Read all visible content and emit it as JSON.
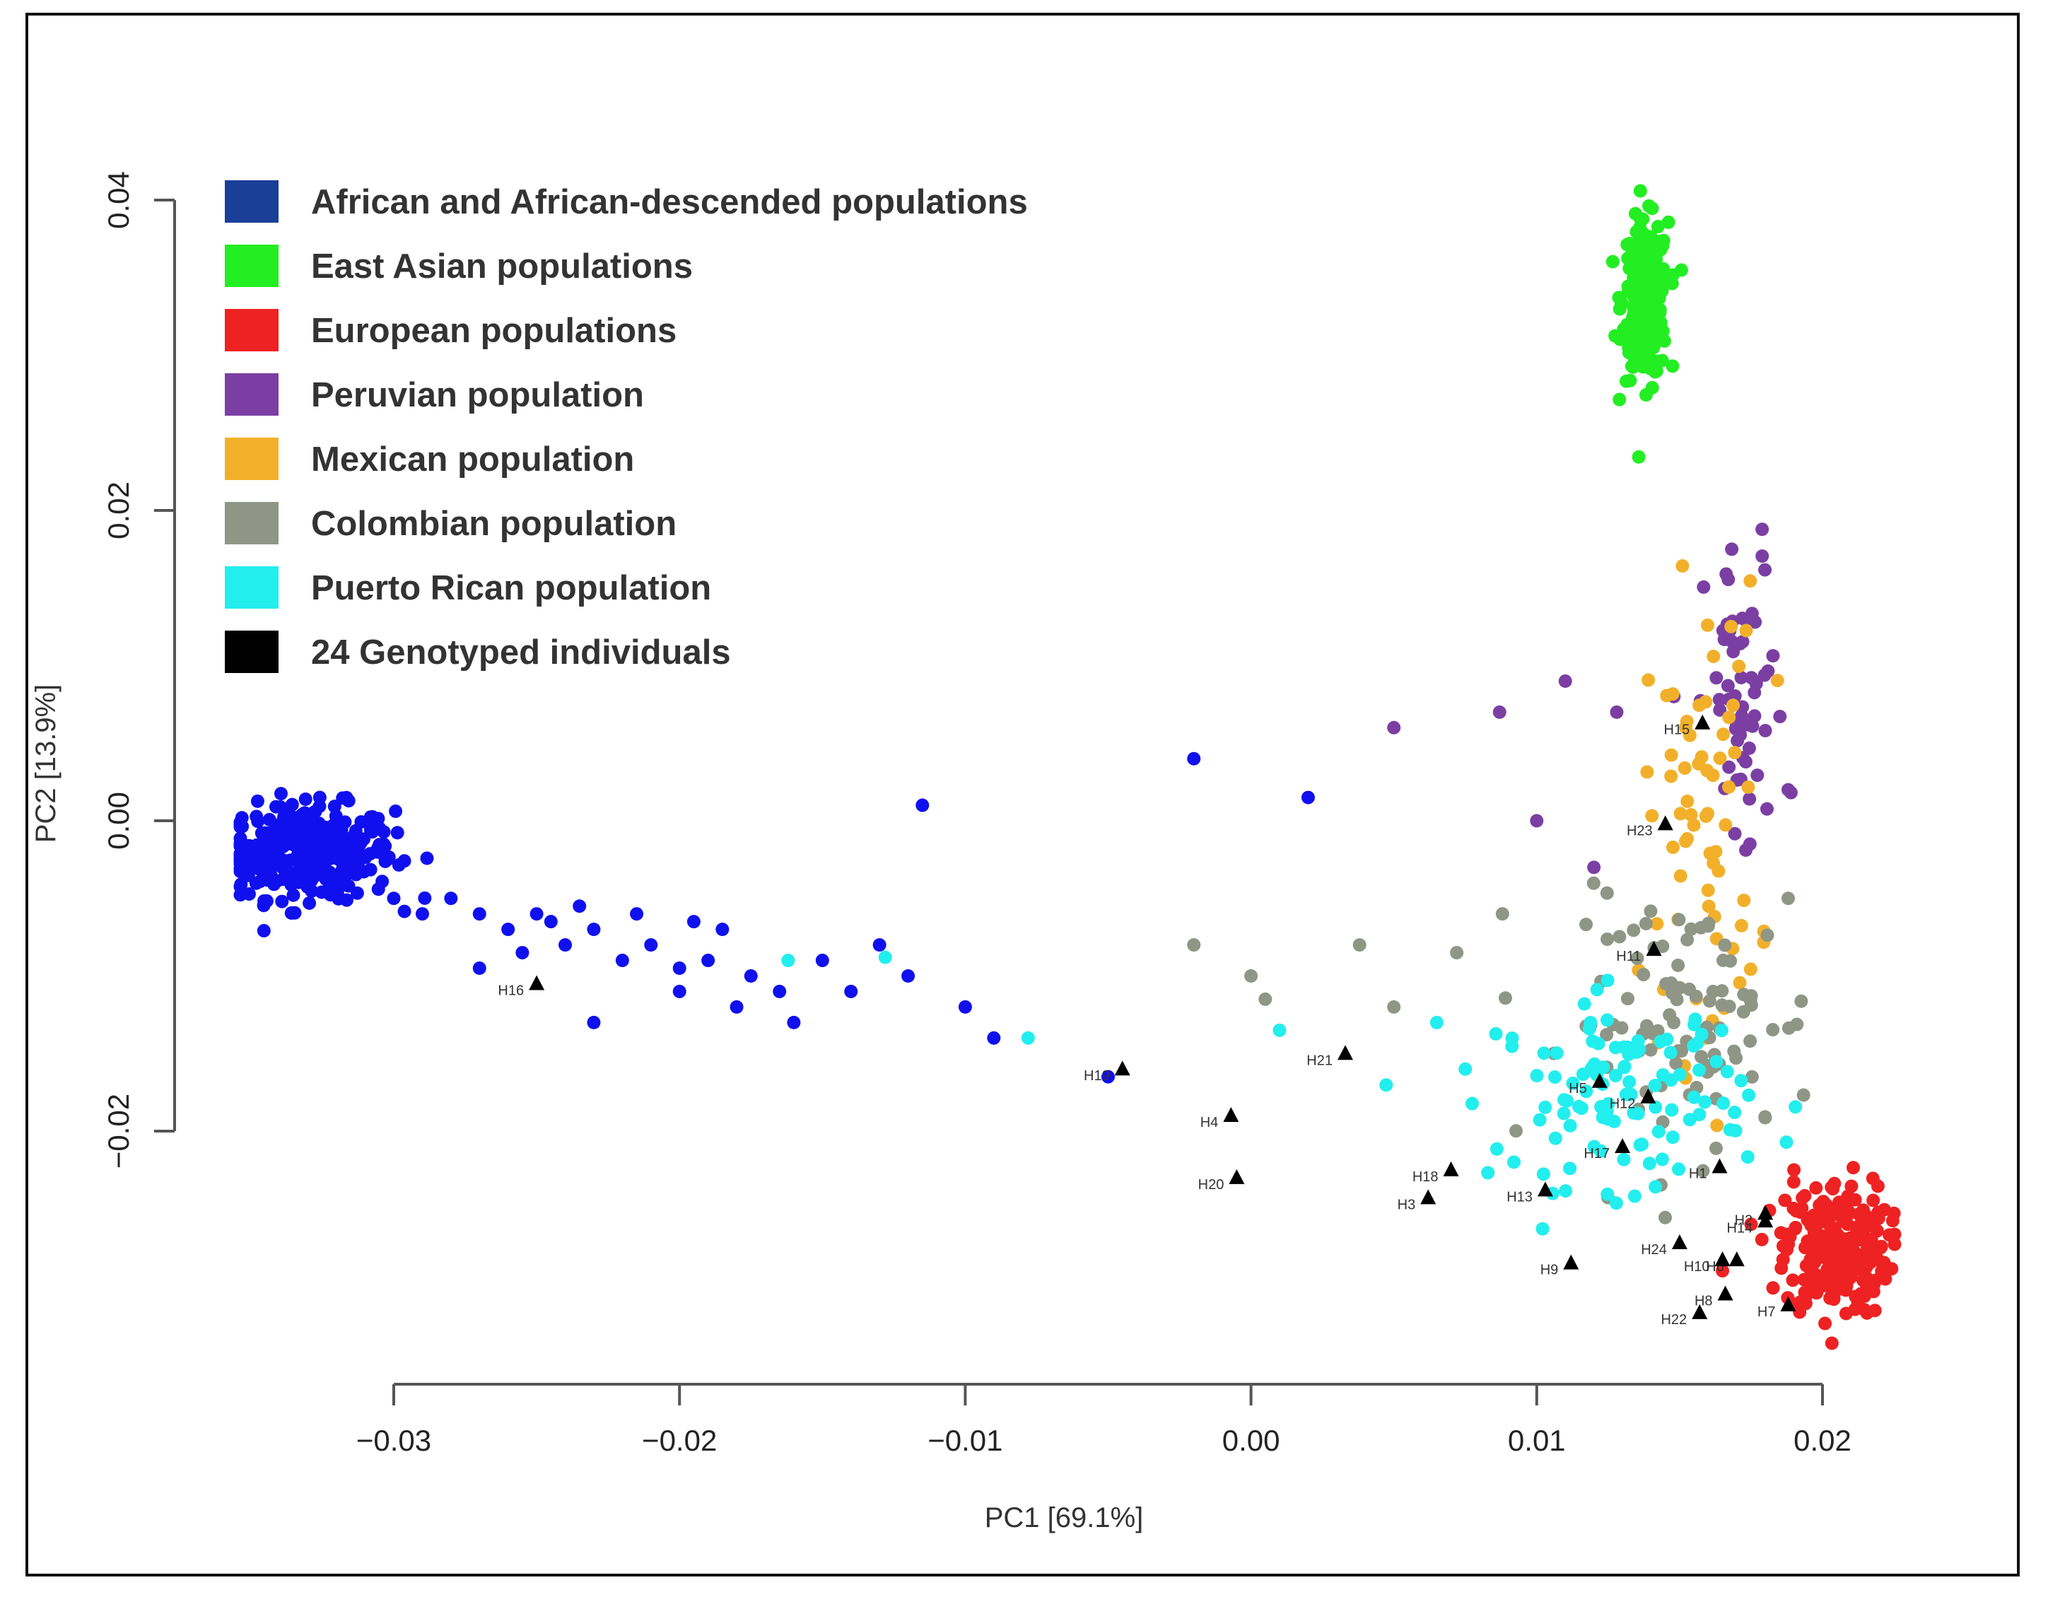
{
  "chart_data": {
    "type": "scatter",
    "title": "",
    "xlabel": "PC1 [69.1%]",
    "ylabel": "PC2 [13.9%]",
    "xlim": [
      -0.03,
      0.02
    ],
    "ylim": [
      -0.02,
      0.04
    ],
    "xticks": [
      -0.03,
      -0.02,
      -0.01,
      0.0,
      0.01,
      0.02
    ],
    "xtick_labels": [
      "−0.03",
      "−0.02",
      "−0.01",
      "0.00",
      "0.01",
      "0.02"
    ],
    "yticks": [
      -0.02,
      0.0,
      0.02,
      0.04
    ],
    "ytick_labels": [
      "−0.02",
      "0.00",
      "0.02",
      "0.04"
    ],
    "grid": false,
    "legend_position": "top-left",
    "legend": [
      {
        "label": "African and African-descended populations",
        "color": "#1a3f99"
      },
      {
        "label": "East Asian populations",
        "color": "#22ee22"
      },
      {
        "label": "European populations",
        "color": "#ee2222"
      },
      {
        "label": "Peruvian population",
        "color": "#7b3fa3"
      },
      {
        "label": "Mexican population",
        "color": "#f2b02a"
      },
      {
        "label": "Colombian population",
        "color": "#8f9685"
      },
      {
        "label": "Puerto Rican population",
        "color": "#22eeee"
      },
      {
        "label": "24 Genotyped individuals",
        "color": "#000000"
      }
    ],
    "series": [
      {
        "name": "African and African-descended populations",
        "color": "#1010ee",
        "clusters": [
          {
            "cx": -0.033,
            "cy": -0.002,
            "sx": 0.0015,
            "sy": 0.0015,
            "n": 330
          }
        ],
        "points": [
          [
            -0.03,
            -0.005
          ],
          [
            -0.029,
            -0.006
          ],
          [
            -0.028,
            -0.005
          ],
          [
            -0.027,
            -0.006
          ],
          [
            -0.026,
            -0.007
          ],
          [
            -0.025,
            -0.006
          ],
          [
            -0.024,
            -0.008
          ],
          [
            -0.023,
            -0.007
          ],
          [
            -0.022,
            -0.009
          ],
          [
            -0.021,
            -0.008
          ],
          [
            -0.02,
            -0.0095
          ],
          [
            -0.019,
            -0.009
          ],
          [
            -0.0185,
            -0.007
          ],
          [
            -0.0175,
            -0.01
          ],
          [
            -0.0165,
            -0.011
          ],
          [
            -0.015,
            -0.009
          ],
          [
            -0.013,
            -0.008
          ],
          [
            -0.012,
            -0.01
          ],
          [
            -0.01,
            -0.012
          ],
          [
            -0.009,
            -0.014
          ],
          [
            -0.023,
            -0.013
          ],
          [
            -0.02,
            -0.011
          ],
          [
            -0.018,
            -0.012
          ],
          [
            -0.016,
            -0.013
          ],
          [
            -0.014,
            -0.011
          ],
          [
            -0.0115,
            0.001
          ],
          [
            -0.002,
            0.004
          ],
          [
            0.002,
            0.0015
          ],
          [
            -0.005,
            -0.0165
          ],
          [
            -0.027,
            -0.0095
          ],
          [
            -0.0255,
            -0.0085
          ],
          [
            -0.0245,
            -0.0065
          ],
          [
            -0.0235,
            -0.0055
          ],
          [
            -0.0215,
            -0.006
          ],
          [
            -0.0195,
            -0.0065
          ]
        ]
      },
      {
        "name": "East Asian populations",
        "color": "#22ee22",
        "clusters": [
          {
            "cx": 0.0138,
            "cy": 0.0335,
            "sx": 0.0004,
            "sy": 0.0025,
            "n": 260
          }
        ],
        "points": []
      },
      {
        "name": "European populations",
        "color": "#ee2222",
        "clusters": [
          {
            "cx": 0.0205,
            "cy": -0.0275,
            "sx": 0.0009,
            "sy": 0.0022,
            "n": 260
          }
        ],
        "points": [
          [
            0.0165,
            -0.029
          ],
          [
            0.019,
            -0.0225
          ],
          [
            0.0175,
            -0.026
          ]
        ]
      },
      {
        "name": "Peruvian population",
        "color": "#7b3fa3",
        "clusters": [
          {
            "cx": 0.0173,
            "cy": 0.007,
            "sx": 0.0007,
            "sy": 0.0055,
            "n": 60
          }
        ],
        "points": [
          [
            0.005,
            0.006
          ],
          [
            0.0087,
            0.007
          ],
          [
            0.011,
            0.009
          ],
          [
            0.0128,
            0.007
          ],
          [
            0.012,
            -0.003
          ],
          [
            0.01,
            0.0
          ],
          [
            0.0148,
            0.008
          ],
          [
            0.0188,
            0.002
          ]
        ]
      },
      {
        "name": "Mexican population",
        "color": "#f2b02a",
        "clusters": [
          {
            "cx": 0.0158,
            "cy": 0.0,
            "sx": 0.001,
            "sy": 0.0075,
            "n": 70
          }
        ],
        "points": []
      },
      {
        "name": "Colombian population",
        "color": "#8f9685",
        "clusters": [
          {
            "cx": 0.0155,
            "cy": -0.013,
            "sx": 0.0022,
            "sy": 0.004,
            "n": 95
          }
        ],
        "points": [
          [
            -0.002,
            -0.008
          ],
          [
            0.0,
            -0.01
          ],
          [
            0.0005,
            -0.0115
          ],
          [
            0.0038,
            -0.008
          ],
          [
            0.005,
            -0.012
          ],
          [
            0.0072,
            -0.0085
          ],
          [
            0.0088,
            -0.006
          ],
          [
            0.0188,
            -0.005
          ]
        ]
      },
      {
        "name": "Puerto Rican population",
        "color": "#22eeee",
        "clusters": [
          {
            "cx": 0.013,
            "cy": -0.0175,
            "sx": 0.0022,
            "sy": 0.003,
            "n": 110
          }
        ],
        "points": [
          [
            -0.0162,
            -0.009
          ],
          [
            -0.0128,
            -0.0088
          ],
          [
            -0.0078,
            -0.014
          ],
          [
            0.001,
            -0.0135
          ],
          [
            0.0065,
            -0.013
          ],
          [
            0.0075,
            -0.016
          ],
          [
            0.0092,
            -0.022
          ]
        ]
      }
    ],
    "genotyped": {
      "name": "24 Genotyped individuals",
      "color": "#000000",
      "points": [
        {
          "id": "H1",
          "x": 0.0164,
          "y": -0.0223
        },
        {
          "id": "H2",
          "x": 0.018,
          "y": -0.0253
        },
        {
          "id": "H3",
          "x": 0.0062,
          "y": -0.0243
        },
        {
          "id": "H4",
          "x": -0.0007,
          "y": -0.019
        },
        {
          "id": "H5",
          "x": 0.0122,
          "y": -0.0168
        },
        {
          "id": "H6",
          "x": 0.017,
          "y": -0.0283
        },
        {
          "id": "H7",
          "x": 0.0188,
          "y": -0.0312
        },
        {
          "id": "H8",
          "x": 0.0166,
          "y": -0.0305
        },
        {
          "id": "H9",
          "x": 0.0112,
          "y": -0.0285
        },
        {
          "id": "H10",
          "x": 0.0165,
          "y": -0.0283
        },
        {
          "id": "H11",
          "x": 0.0141,
          "y": -0.0083
        },
        {
          "id": "H12",
          "x": 0.0139,
          "y": -0.0178
        },
        {
          "id": "H13",
          "x": 0.0103,
          "y": -0.0238
        },
        {
          "id": "H14",
          "x": 0.018,
          "y": -0.0258
        },
        {
          "id": "H15",
          "x": 0.0158,
          "y": 0.0063
        },
        {
          "id": "H16",
          "x": -0.025,
          "y": -0.0105
        },
        {
          "id": "H17",
          "x": 0.013,
          "y": -0.021
        },
        {
          "id": "H18",
          "x": 0.007,
          "y": -0.0225
        },
        {
          "id": "H19",
          "x": -0.0045,
          "y": -0.016
        },
        {
          "id": "H20",
          "x": -0.0005,
          "y": -0.023
        },
        {
          "id": "H21",
          "x": 0.0033,
          "y": -0.015
        },
        {
          "id": "H22",
          "x": 0.0157,
          "y": -0.0317
        },
        {
          "id": "H23",
          "x": 0.0145,
          "y": -0.0002
        },
        {
          "id": "H24",
          "x": 0.015,
          "y": -0.0272
        }
      ]
    }
  }
}
